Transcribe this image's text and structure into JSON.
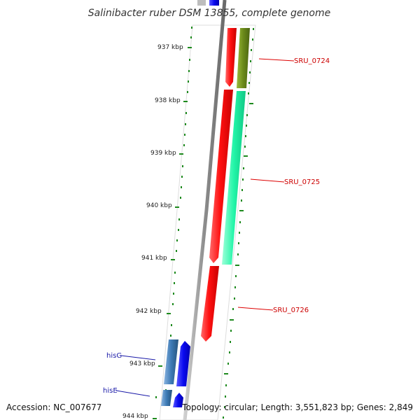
{
  "title": "Salinibacter ruber DSM 13855, complete genome",
  "ticks": [
    "937 kbp",
    "938 kbp",
    "939 kbp",
    "940 kbp",
    "941 kbp",
    "942 kbp",
    "943 kbp",
    "944 kbp"
  ],
  "genes": {
    "sru_0724": "SRU_0724",
    "sru_0725": "SRU_0725",
    "sru_0726": "SRU_0726",
    "hisG": "hisG",
    "hisE": "hisE"
  },
  "footer": {
    "accession": "Accession: NC_007677",
    "summary": "Topology: circular; Length: 3,551,823 bp; Genes: 2,849"
  },
  "colors": {
    "cds_red": "#ff1a1a",
    "cds_green_dark": "#6b8a1a",
    "cds_green_light": "#22f5a8",
    "cds_blue": "#0a0af0",
    "cds_steel": "#3d7ab5",
    "backbone": "#8c8c8c",
    "tick_green": "#1e8a1e",
    "label_red": "#cc0000",
    "label_blue": "#1a1aa8"
  }
}
